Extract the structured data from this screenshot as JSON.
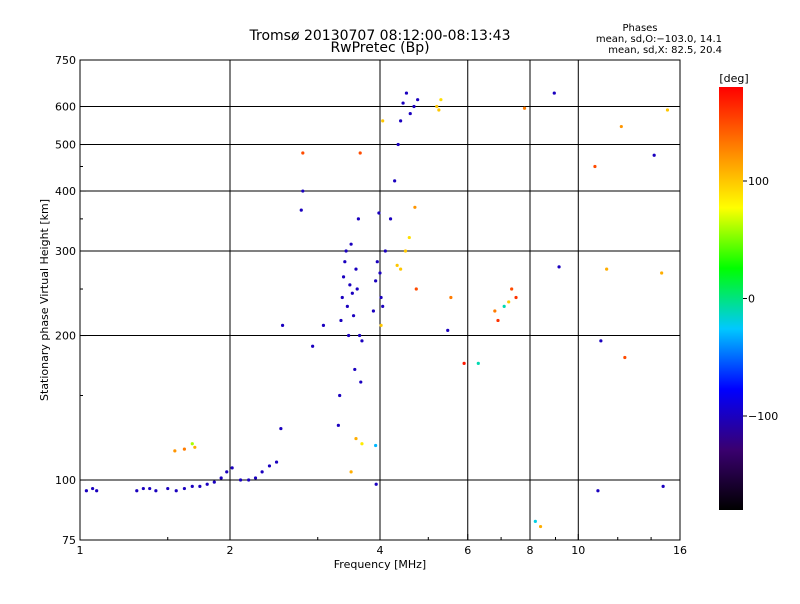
{
  "chart_data": {
    "type": "scatter",
    "title": "Tromsø 20130707 08:12:00-08:13:43",
    "subtitle": "RwPretec (Bp)",
    "xlabel": "Frequency [MHz]",
    "ylabel": "Stationary phase Virtual Height [km]",
    "x_scale": "log",
    "y_scale": "log",
    "xlim": [
      1,
      16
    ],
    "ylim": [
      75,
      750
    ],
    "x_ticks": [
      1,
      2,
      4,
      6,
      8,
      10,
      16
    ],
    "x_tick_labels": [
      "1",
      "2",
      "4",
      "6",
      "8",
      "10",
      "16"
    ],
    "y_ticks": [
      75,
      100,
      200,
      300,
      400,
      500,
      600,
      750
    ],
    "y_tick_labels": [
      "75",
      "100",
      "200",
      "300",
      "400",
      "500",
      "600",
      "750"
    ],
    "grid": true,
    "stats_box": {
      "heading": "Phases",
      "line1": "mean, sd,O:−103.0, 14.1",
      "line2": "mean, sd,X:  82.5, 20.4"
    },
    "colorbar": {
      "label": "[deg]",
      "range": [
        -180,
        180
      ],
      "ticks": [
        100,
        0,
        -100
      ],
      "tick_labels": [
        "100",
        "0",
        "−100"
      ],
      "colormap": [
        "#000000",
        "#3a0070",
        "#0000ff",
        "#00c8ff",
        "#00ff00",
        "#ffff00",
        "#ff8000",
        "#ff0000"
      ]
    },
    "series": [
      {
        "values": [
          {
            "x": 1.03,
            "y": 95,
            "phase": -100
          },
          {
            "x": 1.06,
            "y": 96,
            "phase": -100
          },
          {
            "x": 1.08,
            "y": 95,
            "phase": -100
          },
          {
            "x": 1.3,
            "y": 95,
            "phase": -100
          },
          {
            "x": 1.34,
            "y": 96,
            "phase": -100
          },
          {
            "x": 1.38,
            "y": 96,
            "phase": -100
          },
          {
            "x": 1.42,
            "y": 95,
            "phase": -100
          },
          {
            "x": 1.5,
            "y": 96,
            "phase": -100
          },
          {
            "x": 1.56,
            "y": 95,
            "phase": -100
          },
          {
            "x": 1.62,
            "y": 96,
            "phase": -100
          },
          {
            "x": 1.68,
            "y": 97,
            "phase": -100
          },
          {
            "x": 1.74,
            "y": 97,
            "phase": -100
          },
          {
            "x": 1.8,
            "y": 98,
            "phase": -100
          },
          {
            "x": 1.86,
            "y": 99,
            "phase": -100
          },
          {
            "x": 1.92,
            "y": 101,
            "phase": -100
          },
          {
            "x": 1.97,
            "y": 104,
            "phase": -100
          },
          {
            "x": 2.02,
            "y": 106,
            "phase": -100
          },
          {
            "x": 2.1,
            "y": 100,
            "phase": -100
          },
          {
            "x": 2.18,
            "y": 100,
            "phase": -100
          },
          {
            "x": 2.25,
            "y": 101,
            "phase": -100
          },
          {
            "x": 2.32,
            "y": 104,
            "phase": -100
          },
          {
            "x": 2.4,
            "y": 107,
            "phase": -100
          },
          {
            "x": 2.48,
            "y": 109,
            "phase": -100
          },
          {
            "x": 2.53,
            "y": 128,
            "phase": -100
          },
          {
            "x": 2.55,
            "y": 210,
            "phase": -100
          },
          {
            "x": 2.78,
            "y": 365,
            "phase": -100
          },
          {
            "x": 2.8,
            "y": 400,
            "phase": -100
          },
          {
            "x": 2.93,
            "y": 190,
            "phase": -100
          },
          {
            "x": 3.08,
            "y": 210,
            "phase": -100
          },
          {
            "x": 3.3,
            "y": 130,
            "phase": -100
          },
          {
            "x": 3.32,
            "y": 150,
            "phase": -100
          },
          {
            "x": 3.34,
            "y": 215,
            "phase": -100
          },
          {
            "x": 3.36,
            "y": 240,
            "phase": -100
          },
          {
            "x": 3.38,
            "y": 265,
            "phase": -100
          },
          {
            "x": 3.4,
            "y": 285,
            "phase": -100
          },
          {
            "x": 3.42,
            "y": 300,
            "phase": -100
          },
          {
            "x": 3.44,
            "y": 230,
            "phase": -100
          },
          {
            "x": 3.46,
            "y": 200,
            "phase": -100
          },
          {
            "x": 3.48,
            "y": 255,
            "phase": -100
          },
          {
            "x": 3.5,
            "y": 310,
            "phase": -100
          },
          {
            "x": 3.52,
            "y": 245,
            "phase": -100
          },
          {
            "x": 3.54,
            "y": 220,
            "phase": -100
          },
          {
            "x": 3.56,
            "y": 170,
            "phase": -100
          },
          {
            "x": 3.58,
            "y": 275,
            "phase": -100
          },
          {
            "x": 3.6,
            "y": 250,
            "phase": -100
          },
          {
            "x": 3.62,
            "y": 350,
            "phase": -100
          },
          {
            "x": 3.64,
            "y": 200,
            "phase": -100
          },
          {
            "x": 3.66,
            "y": 160,
            "phase": -100
          },
          {
            "x": 3.68,
            "y": 195,
            "phase": -100
          },
          {
            "x": 3.88,
            "y": 225,
            "phase": -100
          },
          {
            "x": 3.92,
            "y": 260,
            "phase": -100
          },
          {
            "x": 3.95,
            "y": 285,
            "phase": -100
          },
          {
            "x": 3.98,
            "y": 360,
            "phase": -100
          },
          {
            "x": 4.0,
            "y": 270,
            "phase": -100
          },
          {
            "x": 4.02,
            "y": 240,
            "phase": -100
          },
          {
            "x": 4.05,
            "y": 230,
            "phase": -100
          },
          {
            "x": 4.1,
            "y": 300,
            "phase": -100
          },
          {
            "x": 4.2,
            "y": 350,
            "phase": -100
          },
          {
            "x": 4.28,
            "y": 420,
            "phase": -100
          },
          {
            "x": 4.35,
            "y": 500,
            "phase": -100
          },
          {
            "x": 4.4,
            "y": 560,
            "phase": -100
          },
          {
            "x": 4.45,
            "y": 610,
            "phase": -100
          },
          {
            "x": 4.52,
            "y": 640,
            "phase": -100
          },
          {
            "x": 4.6,
            "y": 580,
            "phase": -100
          },
          {
            "x": 4.68,
            "y": 600,
            "phase": -100
          },
          {
            "x": 4.76,
            "y": 620,
            "phase": -100
          },
          {
            "x": 3.93,
            "y": 98,
            "phase": -100
          },
          {
            "x": 5.47,
            "y": 205,
            "phase": -100
          },
          {
            "x": 8.95,
            "y": 640,
            "phase": -100
          },
          {
            "x": 9.15,
            "y": 278,
            "phase": -100
          },
          {
            "x": 10.95,
            "y": 95,
            "phase": -100
          },
          {
            "x": 11.1,
            "y": 195,
            "phase": -100
          },
          {
            "x": 14.2,
            "y": 475,
            "phase": -100
          },
          {
            "x": 14.8,
            "y": 97,
            "phase": -100
          }
        ]
      },
      {
        "values": [
          {
            "x": 1.55,
            "y": 115,
            "phase": 120
          },
          {
            "x": 1.62,
            "y": 116,
            "phase": 130
          },
          {
            "x": 1.68,
            "y": 119,
            "phase": 60
          },
          {
            "x": 1.7,
            "y": 117,
            "phase": 110
          },
          {
            "x": 2.8,
            "y": 480,
            "phase": 150
          },
          {
            "x": 3.5,
            "y": 104,
            "phase": 110
          },
          {
            "x": 3.58,
            "y": 122,
            "phase": 110
          },
          {
            "x": 3.65,
            "y": 480,
            "phase": 150
          },
          {
            "x": 3.68,
            "y": 119,
            "phase": 85
          },
          {
            "x": 3.92,
            "y": 118,
            "phase": -30
          },
          {
            "x": 4.02,
            "y": 210,
            "phase": 100
          },
          {
            "x": 4.05,
            "y": 560,
            "phase": 100
          },
          {
            "x": 4.33,
            "y": 280,
            "phase": 100
          },
          {
            "x": 4.4,
            "y": 275,
            "phase": 100
          },
          {
            "x": 4.5,
            "y": 300,
            "phase": 100
          },
          {
            "x": 4.58,
            "y": 320,
            "phase": 90
          },
          {
            "x": 4.7,
            "y": 370,
            "phase": 120
          },
          {
            "x": 4.73,
            "y": 250,
            "phase": 150
          },
          {
            "x": 5.2,
            "y": 600,
            "phase": 100
          },
          {
            "x": 5.25,
            "y": 590,
            "phase": 100
          },
          {
            "x": 5.3,
            "y": 620,
            "phase": 90
          },
          {
            "x": 5.55,
            "y": 240,
            "phase": 130
          },
          {
            "x": 5.9,
            "y": 175,
            "phase": 170
          },
          {
            "x": 6.3,
            "y": 175,
            "phase": -10
          },
          {
            "x": 6.8,
            "y": 225,
            "phase": 130
          },
          {
            "x": 6.9,
            "y": 215,
            "phase": 160
          },
          {
            "x": 7.1,
            "y": 230,
            "phase": -10
          },
          {
            "x": 7.25,
            "y": 235,
            "phase": 100
          },
          {
            "x": 7.35,
            "y": 250,
            "phase": 150
          },
          {
            "x": 7.5,
            "y": 240,
            "phase": 160
          },
          {
            "x": 7.8,
            "y": 595,
            "phase": 130
          },
          {
            "x": 8.2,
            "y": 82,
            "phase": -20
          },
          {
            "x": 8.4,
            "y": 80,
            "phase": 110
          },
          {
            "x": 10.8,
            "y": 450,
            "phase": 150
          },
          {
            "x": 11.4,
            "y": 275,
            "phase": 110
          },
          {
            "x": 12.2,
            "y": 545,
            "phase": 120
          },
          {
            "x": 12.4,
            "y": 180,
            "phase": 150
          },
          {
            "x": 14.7,
            "y": 270,
            "phase": 110
          },
          {
            "x": 15.1,
            "y": 590,
            "phase": 100
          }
        ]
      }
    ]
  }
}
